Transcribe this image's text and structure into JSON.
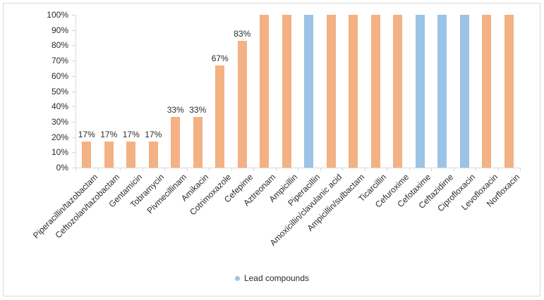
{
  "chart_data": {
    "type": "bar",
    "bars": [
      {
        "category": "Piperacillin/tazobactam",
        "value": 17,
        "label": "17%",
        "lead": false
      },
      {
        "category": "Ceftozolan/tazobactam",
        "value": 17,
        "label": "17%",
        "lead": false
      },
      {
        "category": "Gentamicin",
        "value": 17,
        "label": "17%",
        "lead": false
      },
      {
        "category": "Tobramycin",
        "value": 17,
        "label": "17%",
        "lead": false
      },
      {
        "category": "Pivmecillinam",
        "value": 33,
        "label": "33%",
        "lead": false
      },
      {
        "category": "Amikacin",
        "value": 33,
        "label": "33%",
        "lead": false
      },
      {
        "category": "Cotrimoxazole",
        "value": 67,
        "label": "67%",
        "lead": false
      },
      {
        "category": "Cefepime",
        "value": 83,
        "label": "83%",
        "lead": false
      },
      {
        "category": "Aztreonam",
        "value": 100,
        "label": null,
        "lead": false
      },
      {
        "category": "Ampicillin",
        "value": 100,
        "label": null,
        "lead": false
      },
      {
        "category": "Piperacillin",
        "value": 100,
        "label": null,
        "lead": true
      },
      {
        "category": "Amoxicillin/clavulanic acid",
        "value": 100,
        "label": null,
        "lead": false
      },
      {
        "category": "Ampicillin/sulbactam",
        "value": 100,
        "label": null,
        "lead": false
      },
      {
        "category": "Ticarcillin",
        "value": 100,
        "label": null,
        "lead": false
      },
      {
        "category": "Cefuroxime",
        "value": 100,
        "label": null,
        "lead": false
      },
      {
        "category": "Cefotaxime",
        "value": 100,
        "label": null,
        "lead": true
      },
      {
        "category": "Ceftazidime",
        "value": 100,
        "label": null,
        "lead": true
      },
      {
        "category": "Ciprofloxacin",
        "value": 100,
        "label": null,
        "lead": true
      },
      {
        "category": "Levofloxacin",
        "value": 100,
        "label": null,
        "lead": false
      },
      {
        "category": "Norfloxacin",
        "value": 100,
        "label": null,
        "lead": false
      }
    ],
    "y_ticks": [
      "100%",
      "90%",
      "80%",
      "70%",
      "60%",
      "50%",
      "40%",
      "30%",
      "20%",
      "10%",
      "0%"
    ],
    "ylim": [
      0,
      100
    ],
    "grid": false,
    "legend_position": "bottom-center",
    "legend": [
      {
        "label": "Lead compounds",
        "color": "#9dc3e6"
      }
    ],
    "colors": {
      "default_bar": "#f4b183",
      "lead_bar": "#9dc3e6",
      "axis": "#d9d9d9",
      "text": "#2b2b2b"
    }
  }
}
